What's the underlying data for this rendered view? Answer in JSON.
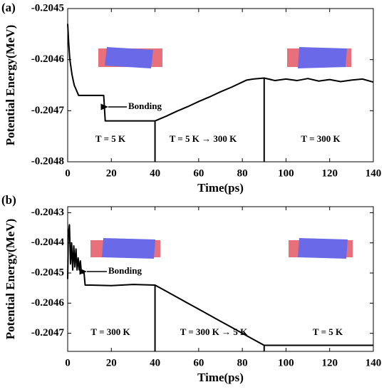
{
  "chart_data": [
    {
      "type": "line",
      "label": "(a)",
      "xlabel": "Time(ps)",
      "ylabel": "Potential Energy(MeV)",
      "xlim": [
        0,
        140
      ],
      "xticks": [
        0,
        20,
        40,
        60,
        80,
        100,
        120,
        140
      ],
      "ylim": [
        -0.2048,
        -0.2045
      ],
      "yticks": [
        -0.2045,
        -0.2046,
        -0.2047,
        -0.2048
      ],
      "x": [
        0,
        0.5,
        1,
        2,
        3,
        4,
        5,
        6,
        10,
        16.5,
        17.2,
        18,
        25,
        40,
        45,
        50,
        55,
        60,
        65,
        70,
        75,
        80,
        82,
        85,
        90,
        95,
        100,
        105,
        110,
        115,
        120,
        125,
        130,
        135,
        140
      ],
      "series": [
        {
          "name": null,
          "color": "#000000",
          "values": [
            -0.20453,
            -0.20457,
            -0.2046,
            -0.20463,
            -0.20465,
            -0.20466,
            -0.20467,
            -0.20467,
            -0.20467,
            -0.20467,
            -0.20472,
            -0.20472,
            -0.20472,
            -0.20472,
            -0.204711,
            -0.204701,
            -0.204692,
            -0.204682,
            -0.204673,
            -0.204663,
            -0.204654,
            -0.204644,
            -0.20464,
            -0.204638,
            -0.204636,
            -0.204641,
            -0.204638,
            -0.204641,
            -0.204637,
            -0.204642,
            -0.204639,
            -0.204643,
            -0.20464,
            -0.204638,
            -0.204644
          ]
        }
      ],
      "vlines": [
        40,
        90
      ],
      "annotations": [
        "Bonding",
        "T = 5 K",
        "T = 5 K → 300 K",
        "T = 300 K"
      ]
    },
    {
      "type": "line",
      "label": "(b)",
      "xlabel": "Time(ps)",
      "ylabel": "Potential Energy(MeV)",
      "xlim": [
        0,
        140
      ],
      "xticks": [
        0,
        20,
        40,
        60,
        80,
        100,
        120,
        140
      ],
      "ylim": [
        -0.20476,
        -0.20428
      ],
      "yticks": [
        -0.2043,
        -0.2044,
        -0.2045,
        -0.2046,
        -0.2047
      ],
      "x": [
        0,
        0.3,
        0.8,
        1.3,
        1.8,
        2.3,
        2.8,
        3.3,
        3.8,
        4.3,
        4.8,
        5.3,
        5.8,
        6.3,
        7.5,
        8,
        10,
        20,
        30,
        40,
        45,
        50,
        55,
        60,
        65,
        70,
        75,
        80,
        85,
        90,
        100,
        110,
        120,
        130,
        140
      ],
      "series": [
        {
          "name": null,
          "color": "#000000",
          "values": [
            -0.20452,
            -0.20437,
            -0.20434,
            -0.20447,
            -0.2044,
            -0.20449,
            -0.20441,
            -0.20448,
            -0.20442,
            -0.20449,
            -0.20445,
            -0.20449,
            -0.20446,
            -0.2045,
            -0.2045,
            -0.20454,
            -0.20454,
            -0.204542,
            -0.204538,
            -0.20454,
            -0.20456,
            -0.20458,
            -0.2046,
            -0.20462,
            -0.20464,
            -0.20466,
            -0.20468,
            -0.2047,
            -0.20472,
            -0.20474,
            -0.20474,
            -0.20474,
            -0.20474,
            -0.20474,
            -0.20474
          ]
        }
      ],
      "vlines": [
        40,
        90
      ],
      "annotations": [
        "Bonding",
        "T = 300 K",
        "T = 300 K → 5 K",
        "T = 5 K"
      ]
    }
  ]
}
